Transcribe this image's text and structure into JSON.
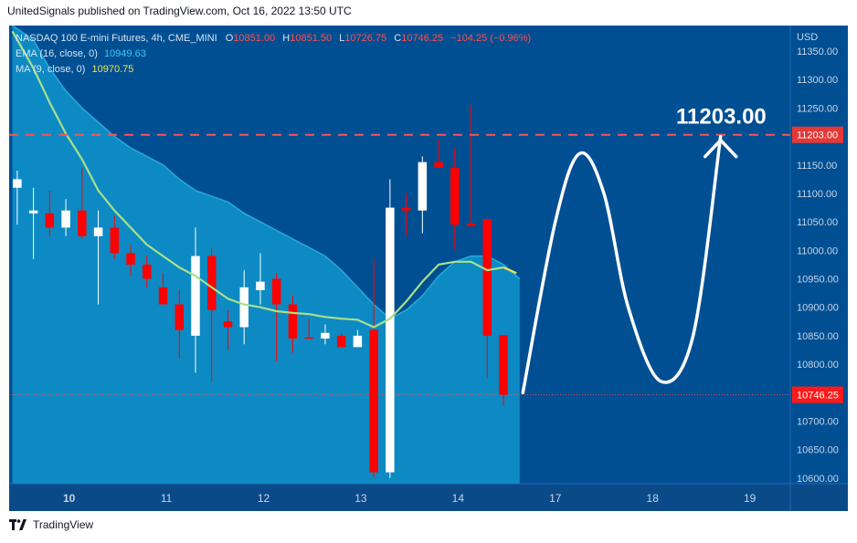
{
  "header": {
    "text": "UnitedSignals published on TradingView.com, Oct 16, 2022 13:50 UTC"
  },
  "footer": {
    "logo_text": "TradingView"
  },
  "legend": {
    "symbol": "NASDAQ 100 E-mini Futures, 4h, CME_MINI",
    "o_label": "O",
    "o_value": "10851.00",
    "h_label": "H",
    "h_value": "10851.50",
    "l_label": "L",
    "l_value": "10726.75",
    "c_label": "C",
    "c_value": "10746.25",
    "change": "−104.25 (−0.96%)",
    "ema_label": "EMA (16, close, 0)",
    "ema_value": "10949.63",
    "ma_label": "MA (9, close, 0)",
    "ma_value": "10970.75"
  },
  "colors": {
    "background": "#004f93",
    "up": "#ffffff",
    "down": "#ff0000",
    "ema_band": "#0e8fc7",
    "ma_line": "#a8e08a",
    "target_line": "#ff5252",
    "projection": "#ffffff"
  },
  "chart_data": {
    "type": "candlestick",
    "currency": "USD",
    "timeframe": "4h",
    "y_ticks": [
      10600,
      10650,
      10700,
      10750,
      10800,
      10850,
      10900,
      10950,
      11000,
      11050,
      11100,
      11150,
      11200,
      11250,
      11300,
      11350
    ],
    "y_tick_labels": [
      "10600.00",
      "10650.00",
      "10700.00",
      "10750.00",
      "10800.00",
      "10850.00",
      "10900.00",
      "10950.00",
      "11000.00",
      "11050.00",
      "11100.00",
      "11150.00",
      "11200.00",
      "11250.00",
      "11300.00",
      "11350.00"
    ],
    "ylim": [
      10590,
      11395
    ],
    "x_ticks": [
      {
        "label": "10",
        "x": 6.2
      },
      {
        "label": "11",
        "x": 12.2
      },
      {
        "label": "12",
        "x": 18.2
      },
      {
        "label": "13",
        "x": 24.2
      },
      {
        "label": "14",
        "x": 30.2
      },
      {
        "label": "17",
        "x": 36.2
      },
      {
        "label": "18",
        "x": 42.2
      },
      {
        "label": "19",
        "x": 48.2
      }
    ],
    "x_first_tick_bold": true,
    "xlim": [
      2.5,
      50.7
    ],
    "candles": [
      {
        "o": 11110,
        "h": 11140,
        "c": 11125,
        "l": 11045
      },
      {
        "o": 11065,
        "h": 11110,
        "c": 11070,
        "l": 10985
      },
      {
        "o": 11065,
        "h": 11105,
        "c": 11040,
        "l": 11025
      },
      {
        "o": 11040,
        "h": 11090,
        "c": 11070,
        "l": 11025
      },
      {
        "o": 11070,
        "h": 11145,
        "c": 11025,
        "l": 11020
      },
      {
        "o": 11025,
        "h": 11070,
        "c": 11040,
        "l": 10905
      },
      {
        "o": 11040,
        "h": 11060,
        "c": 10995,
        "l": 10985
      },
      {
        "o": 10995,
        "h": 11010,
        "c": 10975,
        "l": 10955
      },
      {
        "o": 10975,
        "h": 10990,
        "c": 10950,
        "l": 10935
      },
      {
        "o": 10935,
        "h": 10960,
        "c": 10905,
        "l": 10905
      },
      {
        "o": 10905,
        "h": 10930,
        "c": 10860,
        "l": 10810
      },
      {
        "o": 10850,
        "h": 11040,
        "c": 10990,
        "l": 10785
      },
      {
        "o": 10990,
        "h": 11005,
        "c": 10895,
        "l": 10770
      },
      {
        "o": 10875,
        "h": 10895,
        "c": 10865,
        "l": 10825
      },
      {
        "o": 10865,
        "h": 10965,
        "c": 10935,
        "l": 10835
      },
      {
        "o": 10930,
        "h": 10995,
        "c": 10945,
        "l": 10905
      },
      {
        "o": 10950,
        "h": 10960,
        "c": 10905,
        "l": 10805
      },
      {
        "o": 10905,
        "h": 10920,
        "c": 10845,
        "l": 10820
      },
      {
        "o": 10847,
        "h": 10880,
        "c": 10845,
        "l": 10845
      },
      {
        "o": 10845,
        "h": 10870,
        "c": 10855,
        "l": 10835
      },
      {
        "o": 10850,
        "h": 10855,
        "c": 10830,
        "l": 10830
      },
      {
        "o": 10830,
        "h": 10860,
        "c": 10850,
        "l": 10830
      },
      {
        "o": 10860,
        "h": 10985,
        "c": 10610,
        "l": 10600
      },
      {
        "o": 10610,
        "h": 11125,
        "c": 11075,
        "l": 10600
      },
      {
        "o": 11075,
        "h": 11100,
        "c": 11070,
        "l": 11025
      },
      {
        "o": 11070,
        "h": 11165,
        "c": 11155,
        "l": 11030
      },
      {
        "o": 11155,
        "h": 11195,
        "c": 11145,
        "l": 11145
      },
      {
        "o": 11145,
        "h": 11180,
        "c": 11045,
        "l": 11000
      },
      {
        "o": 11047,
        "h": 11255,
        "c": 11043,
        "l": 11040
      },
      {
        "o": 11055,
        "h": 11060,
        "c": 10850,
        "l": 10775
      },
      {
        "o": 10851,
        "h": 10851.5,
        "c": 10746.25,
        "l": 10726.75
      }
    ],
    "ema": {
      "name": "EMA (16, close, 0)",
      "last_value": 10949.63,
      "points": [
        [
          2.7,
          11395
        ],
        [
          4,
          11370
        ],
        [
          5,
          11320
        ],
        [
          6,
          11280
        ],
        [
          7,
          11250
        ],
        [
          8,
          11225
        ],
        [
          9,
          11200
        ],
        [
          10,
          11180
        ],
        [
          11,
          11165
        ],
        [
          12,
          11150
        ],
        [
          13,
          11125
        ],
        [
          14,
          11105
        ],
        [
          15,
          11095
        ],
        [
          16,
          11085
        ],
        [
          17,
          11065
        ],
        [
          18,
          11050
        ],
        [
          19,
          11035
        ],
        [
          20,
          11020
        ],
        [
          21,
          11005
        ],
        [
          22,
          10990
        ],
        [
          23,
          10965
        ],
        [
          24,
          10935
        ],
        [
          25,
          10905
        ],
        [
          26,
          10880
        ],
        [
          27,
          10895
        ],
        [
          28,
          10920
        ],
        [
          29,
          10955
        ],
        [
          30,
          10980
        ],
        [
          31,
          10990
        ],
        [
          32,
          10990
        ],
        [
          33,
          10975
        ],
        [
          34,
          10950
        ]
      ]
    },
    "ma": {
      "name": "MA (9, close, 0)",
      "last_value": 10970.75,
      "points": [
        [
          2.7,
          11385
        ],
        [
          4,
          11320
        ],
        [
          5,
          11260
        ],
        [
          6,
          11205
        ],
        [
          7,
          11160
        ],
        [
          8,
          11105
        ],
        [
          9,
          11070
        ],
        [
          10,
          11040
        ],
        [
          11,
          11010
        ],
        [
          12,
          10990
        ],
        [
          13,
          10970
        ],
        [
          14,
          10955
        ],
        [
          15,
          10935
        ],
        [
          16,
          10915
        ],
        [
          17,
          10905
        ],
        [
          18,
          10900
        ],
        [
          19,
          10893
        ],
        [
          20,
          10890
        ],
        [
          21,
          10888
        ],
        [
          22,
          10883
        ],
        [
          23,
          10880
        ],
        [
          24,
          10878
        ],
        [
          25,
          10865
        ],
        [
          26,
          10880
        ],
        [
          27,
          10910
        ],
        [
          28,
          10945
        ],
        [
          29,
          10975
        ],
        [
          30,
          10980
        ],
        [
          31,
          10980
        ],
        [
          32,
          10965
        ],
        [
          33,
          10970
        ]
      ]
    },
    "target": {
      "value": 11203,
      "annotation": "11203.00",
      "axis_label": "11203.00"
    },
    "last_price": {
      "value": 10746.25,
      "axis_label": "10746.25"
    },
    "projection": {
      "points": [
        [
          34.2,
          10750
        ],
        [
          36.2,
          11050
        ],
        [
          37.7,
          11170
        ],
        [
          39.2,
          11100
        ],
        [
          40.7,
          10900
        ],
        [
          42.7,
          10770
        ],
        [
          44.7,
          10850
        ],
        [
          46.4,
          11200
        ]
      ]
    }
  }
}
